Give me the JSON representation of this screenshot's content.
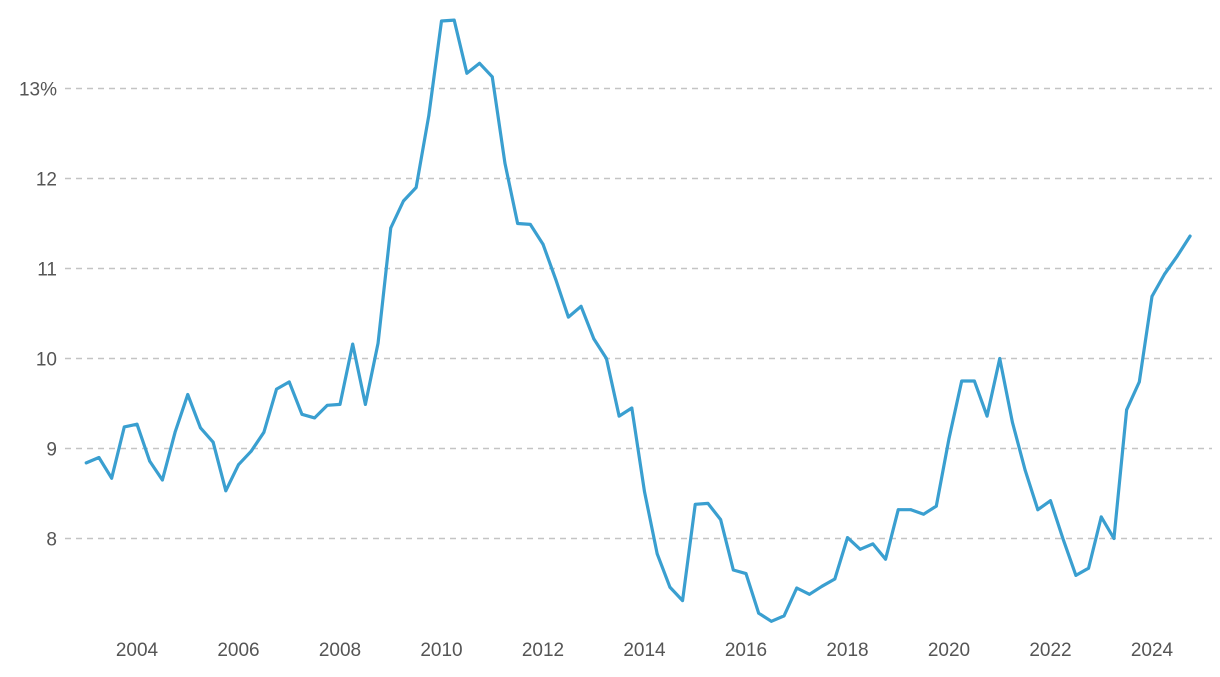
{
  "chart_data": {
    "type": "line",
    "title": "",
    "xlabel": "",
    "ylabel": "",
    "y_unit_suffix": "%",
    "ylim": [
      7.0,
      13.8
    ],
    "xlim": [
      2002.25,
      2025.7
    ],
    "yticks": [
      8,
      9,
      10,
      11,
      12,
      13
    ],
    "ytick_labels": [
      "8",
      "9",
      "10",
      "11",
      "12",
      "13%"
    ],
    "xticks": [
      2004,
      2006,
      2008,
      2010,
      2012,
      2014,
      2016,
      2018,
      2020,
      2022,
      2024
    ],
    "xtick_labels": [
      "2004",
      "2006",
      "2008",
      "2010",
      "2012",
      "2014",
      "2016",
      "2018",
      "2020",
      "2022",
      "2024"
    ],
    "grid": "horizontal-dashed",
    "legend": false,
    "series": [
      {
        "color": "#3a9fd0",
        "x": [
          2003.0,
          2003.25,
          2003.5,
          2003.75,
          2004.0,
          2004.25,
          2004.5,
          2004.75,
          2005.0,
          2005.25,
          2005.5,
          2005.75,
          2006.0,
          2006.25,
          2006.5,
          2006.75,
          2007.0,
          2007.25,
          2007.5,
          2007.75,
          2008.0,
          2008.25,
          2008.5,
          2008.75,
          2009.0,
          2009.25,
          2009.5,
          2009.75,
          2010.0,
          2010.25,
          2010.5,
          2010.75,
          2011.0,
          2011.25,
          2011.5,
          2011.75,
          2012.0,
          2012.25,
          2012.5,
          2012.75,
          2013.0,
          2013.25,
          2013.5,
          2013.75,
          2014.0,
          2014.25,
          2014.5,
          2014.75,
          2015.0,
          2015.25,
          2015.5,
          2015.75,
          2016.0,
          2016.25,
          2016.5,
          2016.75,
          2017.0,
          2017.25,
          2017.5,
          2017.75,
          2018.0,
          2018.25,
          2018.5,
          2018.75,
          2019.0,
          2019.25,
          2019.5,
          2019.75,
          2020.0,
          2020.25,
          2020.5,
          2020.75,
          2021.0,
          2021.25,
          2021.5,
          2021.75,
          2022.0,
          2022.25,
          2022.5,
          2022.75,
          2023.0,
          2023.25,
          2023.5,
          2023.75,
          2024.0,
          2024.25,
          2024.5,
          2024.75
        ],
        "values": [
          8.84,
          8.9,
          8.67,
          9.24,
          9.27,
          8.86,
          8.65,
          9.18,
          9.6,
          9.23,
          9.07,
          8.53,
          8.82,
          8.97,
          9.18,
          9.66,
          9.74,
          9.38,
          9.34,
          9.48,
          9.49,
          10.16,
          9.49,
          10.17,
          11.45,
          11.75,
          11.9,
          12.7,
          13.75,
          13.76,
          13.17,
          13.28,
          13.13,
          12.17,
          11.5,
          11.49,
          11.27,
          10.88,
          10.46,
          10.58,
          10.22,
          10.0,
          9.36,
          9.45,
          8.52,
          7.83,
          7.46,
          7.31,
          8.38,
          8.39,
          8.21,
          7.65,
          7.61,
          7.17,
          7.08,
          7.14,
          7.45,
          7.38,
          7.47,
          7.55,
          8.01,
          7.88,
          7.94,
          7.77,
          8.32,
          8.32,
          8.27,
          8.36,
          9.11,
          9.75,
          9.75,
          9.36,
          10.0,
          9.29,
          8.76,
          8.32,
          8.42,
          7.99,
          7.59,
          7.67,
          8.24,
          8.0,
          9.43,
          9.74,
          10.69,
          10.94,
          11.14,
          11.36
        ]
      }
    ]
  }
}
